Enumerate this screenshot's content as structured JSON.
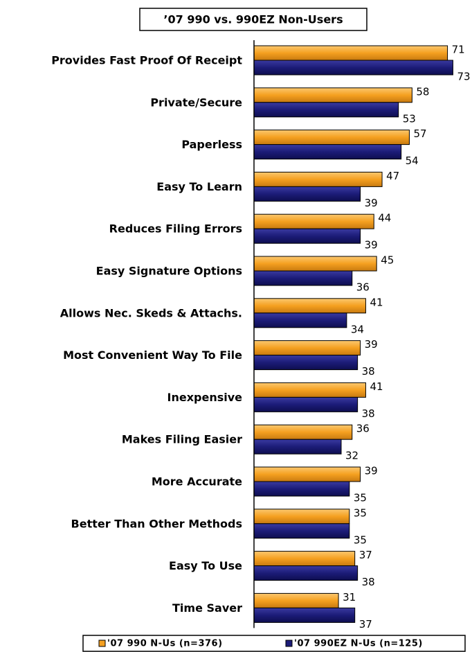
{
  "chart_data": {
    "type": "hbar",
    "title": "’07 990 vs. 990EZ Non-Users",
    "categories": [
      "Provides Fast Proof Of Receipt",
      "Private/Secure",
      "Paperless",
      "Easy To Learn",
      "Reduces Filing Errors",
      "Easy Signature Options",
      "Allows Nec. Skeds & Attachs.",
      "Most Convenient Way To File",
      "Inexpensive",
      "Makes Filing Easier",
      "More Accurate",
      "Better Than Other Methods",
      "Easy To Use",
      "Time Saver"
    ],
    "series": [
      {
        "name": "'07 990 N-Us (n=376)",
        "color": "#f5a020",
        "values": [
          71,
          58,
          57,
          47,
          44,
          45,
          41,
          39,
          41,
          36,
          39,
          35,
          37,
          31
        ]
      },
      {
        "name": "'07 990EZ N-Us (n=125)",
        "color": "#1c1c78",
        "values": [
          73,
          53,
          54,
          39,
          39,
          36,
          34,
          38,
          38,
          32,
          35,
          35,
          38,
          37
        ]
      }
    ],
    "xlim": [
      0,
      80
    ],
    "legend": "bottom"
  }
}
